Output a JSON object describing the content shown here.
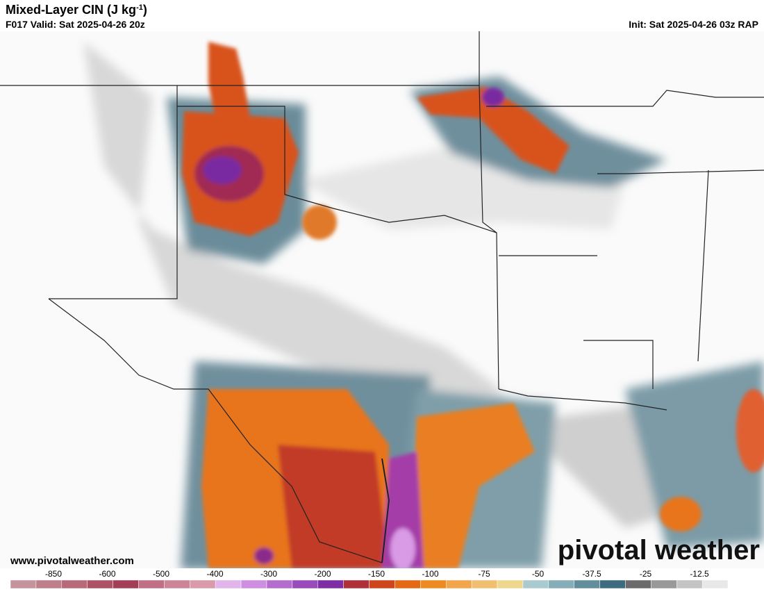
{
  "header": {
    "title": "Mixed-Layer CIN (J kg",
    "title_superscript": "-1",
    "title_end": ")",
    "valid": "F017 Valid: Sat 2025-04-26 20z",
    "init": "Init: Sat 2025-04-26 03z RAP"
  },
  "footer": {
    "website": "www.pivotalweather.com",
    "logo": "pivotal weather"
  },
  "colorbar": {
    "ticks": [
      -850,
      -600,
      -500,
      -400,
      -300,
      -200,
      -150,
      -100,
      -75,
      -50,
      -37.5,
      -25,
      -12.5
    ],
    "colors": [
      "#c4939b",
      "#bf7f8a",
      "#b86a78",
      "#ad5265",
      "#a23e55",
      "#c06f84",
      "#cc8497",
      "#d99aab",
      "#e2b4ec",
      "#cf8fe0",
      "#b56ccf",
      "#9a4bbb",
      "#7e2ea4",
      "#b0303a",
      "#d0461c",
      "#e56814",
      "#ef8a22",
      "#f2a54a",
      "#f0c070",
      "#eed68c",
      "#a9cbd0",
      "#86aeb8",
      "#628d9c",
      "#3f6b80",
      "#6b6b6b",
      "#999999",
      "#c4c4c4",
      "#e8e8e8",
      "#ffffff"
    ]
  }
}
